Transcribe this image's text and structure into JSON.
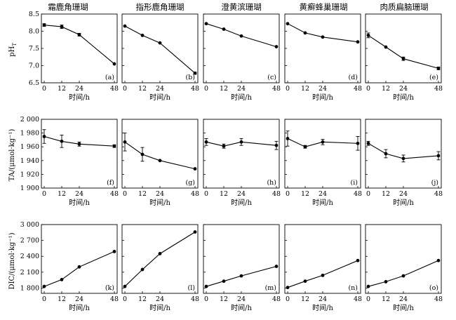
{
  "chart_data": {
    "type": "line",
    "column_titles": [
      "霜鹿角珊瑚",
      "指形鹿角珊瑚",
      "澄黄滨珊瑚",
      "黄癣蜂巢珊瑚",
      "肉质扁脑珊瑚"
    ],
    "x": [
      0,
      12,
      24,
      48
    ],
    "xticks": [
      "0",
      "12",
      "24",
      "48"
    ],
    "xlabel": "时间/h",
    "rows": [
      {
        "ylabel": "pHT",
        "ylabel_main": "pH",
        "ylabel_sub": "T",
        "ylim": [
          6.5,
          8.5
        ],
        "yticks": [
          "6.5",
          "7.0",
          "7.5",
          "8.0",
          "8.5"
        ],
        "ytick_values": [
          6.5,
          7.0,
          7.5,
          8.0,
          8.5
        ],
        "panels": [
          {
            "label": "(a)",
            "values": [
              8.18,
              8.13,
              7.9,
              7.05
            ],
            "errors": [
              0.04,
              0.05,
              0.04,
              0
            ]
          },
          {
            "label": "(b)",
            "values": [
              8.15,
              7.88,
              7.66,
              6.78
            ],
            "errors": [
              0,
              0,
              0,
              0.03
            ]
          },
          {
            "label": "(c)",
            "values": [
              8.22,
              8.06,
              7.86,
              7.55
            ],
            "errors": [
              0,
              0,
              0,
              0
            ]
          },
          {
            "label": "(d)",
            "values": [
              8.22,
              7.95,
              7.83,
              7.69
            ],
            "errors": [
              0,
              0,
              0,
              0
            ]
          },
          {
            "label": "(e)",
            "values": [
              7.88,
              7.54,
              7.2,
              6.92
            ],
            "errors": [
              0.07,
              0,
              0.05,
              0.04
            ]
          }
        ]
      },
      {
        "ylabel": "TA/(μmol·kg⁻¹)",
        "ylim": [
          1900,
          2000
        ],
        "yticks": [
          "1 900",
          "1 920",
          "1 940",
          "1 960",
          "1 980",
          "2 000"
        ],
        "ytick_values": [
          1900,
          1920,
          1940,
          1960,
          1980,
          2000
        ],
        "panels": [
          {
            "label": "(f)",
            "values": [
              1975,
              1968,
              1964,
              1961
            ],
            "errors": [
              10,
              9,
              3,
              2
            ]
          },
          {
            "label": "(g)",
            "values": [
              1967,
              1949,
              1940,
              1928
            ],
            "errors": [
              13,
              10,
              0,
              0
            ]
          },
          {
            "label": "(h)",
            "values": [
              1967,
              1961,
              1967,
              1962
            ],
            "errors": [
              5,
              3,
              5,
              6
            ]
          },
          {
            "label": "(i)",
            "values": [
              1972,
              1960,
              1967,
              1965
            ],
            "errors": [
              11,
              2,
              4,
              10
            ]
          },
          {
            "label": "(j)",
            "values": [
              1965,
              1950,
              1943,
              1947
            ],
            "errors": [
              3,
              6,
              5,
              6
            ]
          }
        ]
      },
      {
        "ylabel": "DIC/(μmol·kg⁻¹)",
        "ylim": [
          1700,
          3000
        ],
        "yticks": [
          "1 800",
          "2 100",
          "2 400",
          "2 700",
          "3 000"
        ],
        "ytick_values": [
          1800,
          2100,
          2400,
          2700,
          3000
        ],
        "panels": [
          {
            "label": "(k)",
            "values": [
              1830,
              1960,
              2200,
              2490
            ],
            "errors": [
              0,
              0,
              0,
              0
            ]
          },
          {
            "label": "(l)",
            "values": [
              1830,
              2150,
              2450,
              2860
            ],
            "errors": [
              0,
              0,
              0,
              0
            ]
          },
          {
            "label": "(m)",
            "values": [
              1830,
              1930,
              2030,
              2210
            ],
            "errors": [
              0,
              0,
              0,
              0
            ]
          },
          {
            "label": "(n)",
            "values": [
              1810,
              1930,
              2040,
              2320
            ],
            "errors": [
              0,
              0,
              0,
              0
            ]
          },
          {
            "label": "(o)",
            "values": [
              1830,
              1920,
              2030,
              2320
            ],
            "errors": [
              0,
              0,
              0,
              0
            ]
          }
        ]
      }
    ]
  }
}
